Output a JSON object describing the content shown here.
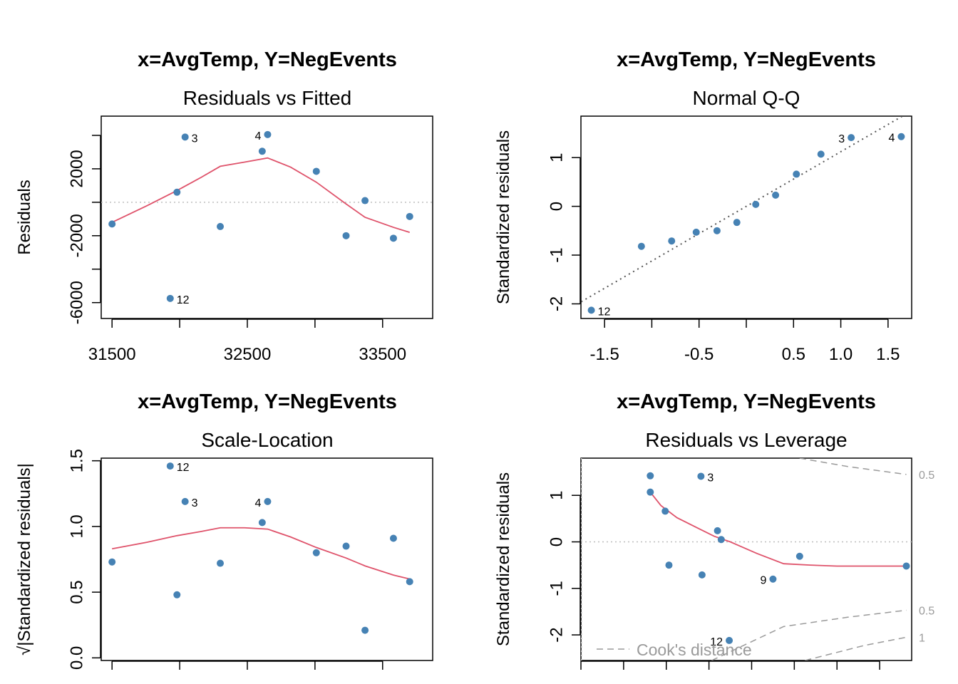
{
  "colors": {
    "points": "#4682b4",
    "smooth": "#df536b",
    "reference": "#bebebe",
    "qqline": "#555555",
    "cook": "#9a9a9a"
  },
  "chart_data": [
    {
      "type": "scatter",
      "main_title": "x=AvgTemp, Y=NegEvents",
      "subtitle": "Residuals vs Fitted",
      "xlabel": "",
      "ylabel": "Residuals",
      "xlim": [
        31420,
        33870
      ],
      "ylim": [
        -6950,
        5150
      ],
      "xticks": [
        31500,
        32000,
        32500,
        33000,
        33500
      ],
      "xtick_labels": [
        "31500",
        "",
        "32500",
        "",
        "33500"
      ],
      "yticks": [
        -6000,
        -4000,
        -2000,
        0,
        2000,
        4000
      ],
      "ytick_labels": [
        "-6000",
        "",
        "-2000",
        "",
        "2000",
        ""
      ],
      "hline": 0,
      "x": [
        31500,
        31930,
        31980,
        32040,
        32300,
        32610,
        32650,
        33010,
        33230,
        33370,
        33580,
        33700
      ],
      "y": [
        -1300,
        -5750,
        600,
        3900,
        -1450,
        3050,
        4050,
        1850,
        -2000,
        100,
        -2150,
        -850
      ],
      "point_labels": [
        {
          "index": 3,
          "text": "3"
        },
        {
          "index": 6,
          "text": "4"
        },
        {
          "index": 1,
          "text": "12"
        }
      ],
      "smooth_x": [
        31500,
        31760,
        31980,
        32150,
        32300,
        32480,
        32650,
        32820,
        33010,
        33230,
        33370,
        33580,
        33700
      ],
      "smooth_y": [
        -1200,
        -200,
        700,
        1450,
        2150,
        2400,
        2650,
        2100,
        1200,
        -100,
        -900,
        -1500,
        -1800
      ]
    },
    {
      "type": "scatter",
      "main_title": "x=AvgTemp, Y=NegEvents",
      "subtitle": "Normal Q-Q",
      "xlabel": "",
      "ylabel": "Standardized residuals",
      "xlim": [
        -1.75,
        1.75
      ],
      "ylim": [
        -2.3,
        1.85
      ],
      "xticks": [
        -1.5,
        -1.0,
        -0.5,
        0.0,
        0.5,
        1.0,
        1.5
      ],
      "xtick_labels": [
        "-1.5",
        "",
        "-0.5",
        "",
        "0.5",
        "1.0",
        "1.5"
      ],
      "yticks": [
        -2,
        -1,
        0,
        1
      ],
      "ytick_labels": [
        "-2",
        "-1",
        "0",
        "1"
      ],
      "qq_line": {
        "slope": 1.12,
        "intercept": 0.0
      },
      "x": [
        -1.64,
        -1.11,
        -0.79,
        -0.53,
        -0.31,
        -0.1,
        0.1,
        0.31,
        0.53,
        0.79,
        1.11,
        1.64
      ],
      "y": [
        -2.13,
        -0.82,
        -0.71,
        -0.53,
        -0.5,
        -0.33,
        0.04,
        0.23,
        0.66,
        1.07,
        1.41,
        1.43
      ],
      "point_labels": [
        {
          "index": 0,
          "text": "12"
        },
        {
          "index": 10,
          "text": "3"
        },
        {
          "index": 11,
          "text": "4"
        }
      ]
    },
    {
      "type": "scatter",
      "main_title": "x=AvgTemp, Y=NegEvents",
      "subtitle": "Scale-Location",
      "xlabel": "",
      "ylabel": "√|Standardized residuals|",
      "xlim": [
        31420,
        33870
      ],
      "ylim": [
        -0.02,
        1.52
      ],
      "xticks": [
        31500,
        32000,
        32500,
        33000,
        33500
      ],
      "xtick_labels": [
        "",
        "",
        "",
        "",
        ""
      ],
      "yticks": [
        0.0,
        0.5,
        1.0,
        1.5
      ],
      "ytick_labels": [
        "0.0",
        "0.5",
        "1.0",
        "1.5"
      ],
      "x": [
        31500,
        31930,
        31980,
        32040,
        32300,
        32610,
        32650,
        33010,
        33230,
        33370,
        33580,
        33700
      ],
      "y": [
        0.73,
        1.46,
        0.48,
        1.19,
        0.72,
        1.03,
        1.19,
        0.8,
        0.85,
        0.21,
        0.91,
        0.58
      ],
      "point_labels": [
        {
          "index": 3,
          "text": "3"
        },
        {
          "index": 6,
          "text": "4"
        },
        {
          "index": 1,
          "text": "12"
        }
      ],
      "smooth_x": [
        31500,
        31760,
        31980,
        32150,
        32300,
        32480,
        32650,
        32820,
        33010,
        33230,
        33370,
        33580,
        33700
      ],
      "smooth_y": [
        0.83,
        0.88,
        0.93,
        0.96,
        0.99,
        0.99,
        0.98,
        0.92,
        0.84,
        0.76,
        0.7,
        0.63,
        0.6
      ]
    },
    {
      "type": "scatter",
      "main_title": "x=AvgTemp, Y=NegEvents",
      "subtitle": "Residuals vs Leverage",
      "xlabel": "",
      "ylabel": "Standardized residuals",
      "xlim": [
        0.02,
        0.64
      ],
      "ylim": [
        -2.55,
        1.8
      ],
      "xticks": [
        0.02,
        0.1,
        0.18,
        0.26,
        0.34,
        0.42,
        0.5,
        0.58
      ],
      "xtick_labels": [
        "",
        "",
        "",
        "",
        "",
        "",
        "",
        ""
      ],
      "yticks": [
        -2,
        -1,
        0,
        1
      ],
      "ytick_labels": [
        "-2",
        "-1",
        "0",
        "1"
      ],
      "hline": 0,
      "vline": 0.021,
      "x": [
        0.15,
        0.15,
        0.178,
        0.185,
        0.245,
        0.247,
        0.276,
        0.283,
        0.298,
        0.38,
        0.43,
        0.63
      ],
      "y": [
        1.42,
        1.07,
        0.66,
        -0.5,
        1.41,
        -0.71,
        0.24,
        0.05,
        -2.12,
        -0.8,
        -0.31,
        -0.52
      ],
      "point_labels": [
        {
          "index": 4,
          "text": "3"
        },
        {
          "index": 9,
          "text": "9"
        },
        {
          "index": 8,
          "text": "12"
        }
      ],
      "smooth_x": [
        0.15,
        0.17,
        0.2,
        0.24,
        0.27,
        0.3,
        0.35,
        0.4,
        0.45,
        0.5,
        0.63
      ],
      "smooth_y": [
        1.07,
        0.78,
        0.52,
        0.29,
        0.12,
        0.0,
        -0.25,
        -0.47,
        -0.5,
        -0.52,
        -0.52
      ],
      "cook_contours": [
        {
          "label": "0.5",
          "points": [
            [
              0.43,
              1.8
            ],
            [
              0.52,
              1.62
            ],
            [
              0.63,
              1.45
            ]
          ]
        },
        {
          "label": "0.5",
          "points": [
            [
              0.265,
              -2.55
            ],
            [
              0.4,
              -1.82
            ],
            [
              0.52,
              -1.62
            ],
            [
              0.63,
              -1.47
            ]
          ]
        },
        {
          "label": "1",
          "points": [
            [
              0.44,
              -2.55
            ],
            [
              0.55,
              -2.23
            ],
            [
              0.63,
              -2.05
            ]
          ]
        }
      ],
      "legend": {
        "text": "Cook's distance",
        "position": "bottom-left"
      }
    }
  ]
}
